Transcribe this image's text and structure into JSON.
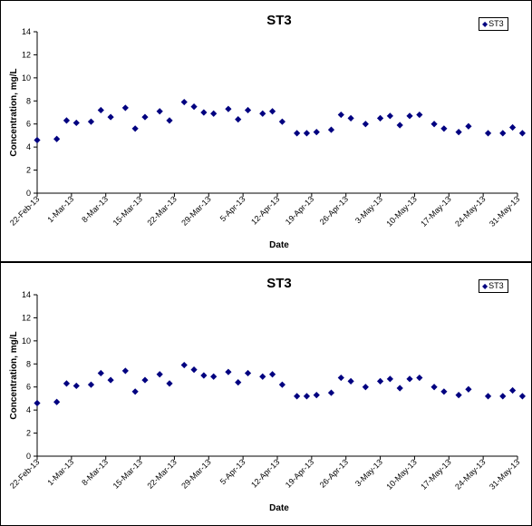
{
  "chart_data": [
    {
      "type": "scatter",
      "title": "ST3",
      "xlabel": "Date",
      "ylabel": "Concentration, mg/L",
      "ylim": [
        0,
        14
      ],
      "yticks": [
        0,
        2,
        4,
        6,
        8,
        10,
        12,
        14
      ],
      "xlim": [
        "2013-02-22",
        "2013-05-31"
      ],
      "xticks": [
        "22-Feb-13",
        "1-Mar-13",
        "8-Mar-13",
        "15-Mar-13",
        "22-Mar-13",
        "29-Mar-13",
        "5-Apr-13",
        "12-Apr-13",
        "19-Apr-13",
        "26-Apr-13",
        "3-May-13",
        "10-May-13",
        "17-May-13",
        "24-May-13",
        "31-May-13"
      ],
      "grid": false,
      "legend_position": "top-right",
      "series": [
        {
          "name": "ST3",
          "color": "#000080",
          "marker": "diamond",
          "points": [
            {
              "x": "2013-02-22",
              "y": 4.6
            },
            {
              "x": "2013-02-26",
              "y": 4.7
            },
            {
              "x": "2013-02-28",
              "y": 6.3
            },
            {
              "x": "2013-03-02",
              "y": 6.1
            },
            {
              "x": "2013-03-05",
              "y": 6.2
            },
            {
              "x": "2013-03-07",
              "y": 7.2
            },
            {
              "x": "2013-03-09",
              "y": 6.6
            },
            {
              "x": "2013-03-12",
              "y": 7.4
            },
            {
              "x": "2013-03-14",
              "y": 5.6
            },
            {
              "x": "2013-03-16",
              "y": 6.6
            },
            {
              "x": "2013-03-19",
              "y": 7.1
            },
            {
              "x": "2013-03-21",
              "y": 6.3
            },
            {
              "x": "2013-03-24",
              "y": 7.9
            },
            {
              "x": "2013-03-26",
              "y": 7.5
            },
            {
              "x": "2013-03-28",
              "y": 7.0
            },
            {
              "x": "2013-03-30",
              "y": 6.9
            },
            {
              "x": "2013-04-02",
              "y": 7.3
            },
            {
              "x": "2013-04-04",
              "y": 6.4
            },
            {
              "x": "2013-04-06",
              "y": 7.2
            },
            {
              "x": "2013-04-09",
              "y": 6.9
            },
            {
              "x": "2013-04-11",
              "y": 7.1
            },
            {
              "x": "2013-04-13",
              "y": 6.2
            },
            {
              "x": "2013-04-16",
              "y": 5.2
            },
            {
              "x": "2013-04-18",
              "y": 5.2
            },
            {
              "x": "2013-04-20",
              "y": 5.3
            },
            {
              "x": "2013-04-23",
              "y": 5.5
            },
            {
              "x": "2013-04-25",
              "y": 6.8
            },
            {
              "x": "2013-04-27",
              "y": 6.5
            },
            {
              "x": "2013-04-30",
              "y": 6.0
            },
            {
              "x": "2013-05-03",
              "y": 6.5
            },
            {
              "x": "2013-05-05",
              "y": 6.7
            },
            {
              "x": "2013-05-07",
              "y": 5.9
            },
            {
              "x": "2013-05-09",
              "y": 6.7
            },
            {
              "x": "2013-05-11",
              "y": 6.8
            },
            {
              "x": "2013-05-14",
              "y": 6.0
            },
            {
              "x": "2013-05-16",
              "y": 5.6
            },
            {
              "x": "2013-05-19",
              "y": 5.3
            },
            {
              "x": "2013-05-21",
              "y": 5.8
            },
            {
              "x": "2013-05-25",
              "y": 5.2
            },
            {
              "x": "2013-05-28",
              "y": 5.2
            },
            {
              "x": "2013-05-30",
              "y": 5.7
            },
            {
              "x": "2013-06-01",
              "y": 5.2
            }
          ]
        }
      ]
    },
    {
      "type": "scatter",
      "title": "ST3",
      "xlabel": "Date",
      "ylabel": "Concentration, mg/L",
      "ylim": [
        0,
        14
      ],
      "yticks": [
        0,
        2,
        4,
        6,
        8,
        10,
        12,
        14
      ],
      "xlim": [
        "2013-02-22",
        "2013-05-31"
      ],
      "xticks": [
        "22-Feb-13",
        "1-Mar-13",
        "8-Mar-13",
        "15-Mar-13",
        "22-Mar-13",
        "29-Mar-13",
        "5-Apr-13",
        "12-Apr-13",
        "19-Apr-13",
        "26-Apr-13",
        "3-May-13",
        "10-May-13",
        "17-May-13",
        "24-May-13",
        "31-May-13"
      ],
      "grid": false,
      "legend_position": "top-right",
      "series": [
        {
          "name": "ST3",
          "color": "#000080",
          "marker": "diamond",
          "points": [
            {
              "x": "2013-02-22",
              "y": 4.6
            },
            {
              "x": "2013-02-26",
              "y": 4.7
            },
            {
              "x": "2013-02-28",
              "y": 6.3
            },
            {
              "x": "2013-03-02",
              "y": 6.1
            },
            {
              "x": "2013-03-05",
              "y": 6.2
            },
            {
              "x": "2013-03-07",
              "y": 7.2
            },
            {
              "x": "2013-03-09",
              "y": 6.6
            },
            {
              "x": "2013-03-12",
              "y": 7.4
            },
            {
              "x": "2013-03-14",
              "y": 5.6
            },
            {
              "x": "2013-03-16",
              "y": 6.6
            },
            {
              "x": "2013-03-19",
              "y": 7.1
            },
            {
              "x": "2013-03-21",
              "y": 6.3
            },
            {
              "x": "2013-03-24",
              "y": 7.9
            },
            {
              "x": "2013-03-26",
              "y": 7.5
            },
            {
              "x": "2013-03-28",
              "y": 7.0
            },
            {
              "x": "2013-03-30",
              "y": 6.9
            },
            {
              "x": "2013-04-02",
              "y": 7.3
            },
            {
              "x": "2013-04-04",
              "y": 6.4
            },
            {
              "x": "2013-04-06",
              "y": 7.2
            },
            {
              "x": "2013-04-09",
              "y": 6.9
            },
            {
              "x": "2013-04-11",
              "y": 7.1
            },
            {
              "x": "2013-04-13",
              "y": 6.2
            },
            {
              "x": "2013-04-16",
              "y": 5.2
            },
            {
              "x": "2013-04-18",
              "y": 5.2
            },
            {
              "x": "2013-04-20",
              "y": 5.3
            },
            {
              "x": "2013-04-23",
              "y": 5.5
            },
            {
              "x": "2013-04-25",
              "y": 6.8
            },
            {
              "x": "2013-04-27",
              "y": 6.5
            },
            {
              "x": "2013-04-30",
              "y": 6.0
            },
            {
              "x": "2013-05-03",
              "y": 6.5
            },
            {
              "x": "2013-05-05",
              "y": 6.7
            },
            {
              "x": "2013-05-07",
              "y": 5.9
            },
            {
              "x": "2013-05-09",
              "y": 6.7
            },
            {
              "x": "2013-05-11",
              "y": 6.8
            },
            {
              "x": "2013-05-14",
              "y": 6.0
            },
            {
              "x": "2013-05-16",
              "y": 5.6
            },
            {
              "x": "2013-05-19",
              "y": 5.3
            },
            {
              "x": "2013-05-21",
              "y": 5.8
            },
            {
              "x": "2013-05-25",
              "y": 5.2
            },
            {
              "x": "2013-05-28",
              "y": 5.2
            },
            {
              "x": "2013-05-30",
              "y": 5.7
            },
            {
              "x": "2013-06-01",
              "y": 5.2
            }
          ]
        }
      ]
    }
  ]
}
